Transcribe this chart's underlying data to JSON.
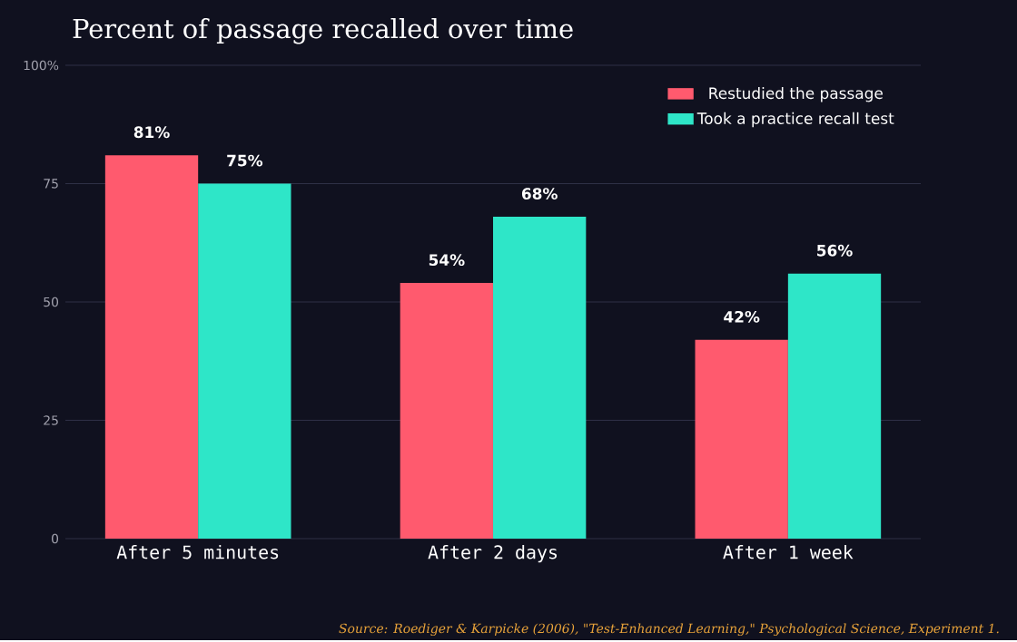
{
  "chart_data": {
    "type": "bar",
    "title": "Percent of passage recalled over time",
    "categories": [
      "After 5 minutes",
      "After 2 days",
      "After 1 week"
    ],
    "series": [
      {
        "name": "Restudied the passage",
        "color": "#ff5a6e",
        "values": [
          81,
          54,
          42
        ],
        "value_labels": [
          "81%",
          "54%",
          "42%"
        ]
      },
      {
        "name": "Took a practice recall test",
        "color": "#2ee6c8",
        "values": [
          75,
          68,
          56
        ],
        "value_labels": [
          "75%",
          "68%",
          "56%"
        ]
      }
    ],
    "ylim": [
      0,
      100
    ],
    "yticks": [
      0,
      25,
      50,
      75,
      {
        "value": 100,
        "label": "100%"
      }
    ],
    "grid": "y",
    "legend": "top right",
    "annotations": [
      "Source: Roediger & Karpicke (2006), \"Test-Enhanced Learning,\" Psychological Science, Experiment 1."
    ]
  }
}
